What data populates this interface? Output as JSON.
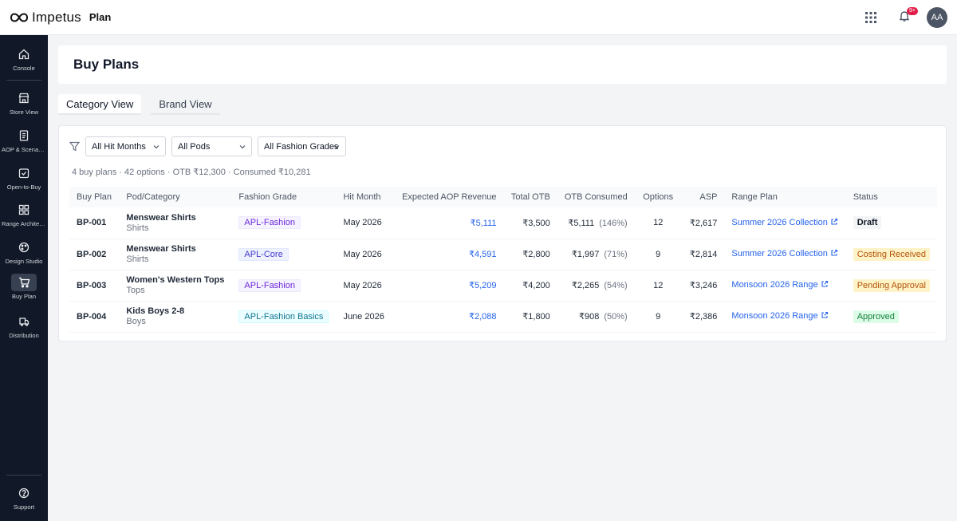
{
  "topbar": {
    "brand_name": "Impetus",
    "app_name": "Plan",
    "notification_badge": "9+",
    "avatar_initials": "AA"
  },
  "sidebar": {
    "items": [
      {
        "label": "Console",
        "icon": "home-icon"
      },
      {
        "label": "Store View",
        "icon": "store-icon"
      },
      {
        "label": "AOP & Scenarios",
        "icon": "document-icon"
      },
      {
        "label": "Open-to-Buy",
        "icon": "calendar-check-icon"
      },
      {
        "label": "Range Architecture",
        "icon": "grid-icon"
      },
      {
        "label": "Design Studio",
        "icon": "palette-icon"
      },
      {
        "label": "Buy Plan",
        "icon": "cart-icon"
      },
      {
        "label": "Distribution",
        "icon": "truck-icon"
      }
    ],
    "support_label": "Support"
  },
  "page": {
    "title": "Buy Plans"
  },
  "tabs": [
    {
      "label": "Category View",
      "active": true
    },
    {
      "label": "Brand View",
      "active": false
    }
  ],
  "filters": {
    "hit_months": "All Hit Months",
    "pods": "All Pods",
    "grades": "All Fashion Grades"
  },
  "summary": "4 buy plans · 42 options · OTB ₹12,300 · Consumed ₹10,281",
  "table": {
    "headers": {
      "buy_plan": "Buy Plan",
      "pod_category": "Pod/Category",
      "fashion_grade": "Fashion Grade",
      "hit_month": "Hit Month",
      "expected_aop_revenue": "Expected AOP Revenue",
      "total_otb": "Total OTB",
      "otb_consumed": "OTB Consumed",
      "options": "Options",
      "asp": "ASP",
      "range_plan": "Range Plan",
      "status": "Status"
    },
    "rows": [
      {
        "id": "BP-001",
        "pod": "Menswear Shirts",
        "category": "Shirts",
        "grade": "APL-Fashion",
        "hit_month": "May 2026",
        "revenue": "₹5,111",
        "otb": "₹3,500",
        "consumed": "₹5,111",
        "consumed_pct": "(146%)",
        "options": "12",
        "asp": "₹2,617",
        "range_plan": "Summer 2026 Collection",
        "status": "Draft"
      },
      {
        "id": "BP-002",
        "pod": "Menswear Shirts",
        "category": "Shirts",
        "grade": "APL-Core",
        "hit_month": "May 2026",
        "revenue": "₹4,591",
        "otb": "₹2,800",
        "consumed": "₹1,997",
        "consumed_pct": "(71%)",
        "options": "9",
        "asp": "₹2,814",
        "range_plan": "Summer 2026 Collection",
        "status": "Costing Received"
      },
      {
        "id": "BP-003",
        "pod": "Women's Western Tops",
        "category": "Tops",
        "grade": "APL-Fashion",
        "hit_month": "May 2026",
        "revenue": "₹5,209",
        "otb": "₹4,200",
        "consumed": "₹2,265",
        "consumed_pct": "(54%)",
        "options": "12",
        "asp": "₹3,246",
        "range_plan": "Monsoon 2026 Range",
        "status": "Pending Approval"
      },
      {
        "id": "BP-004",
        "pod": "Kids Boys 2-8",
        "category": "Boys",
        "grade": "APL-Fashion Basics",
        "hit_month": "June 2026",
        "revenue": "₹2,088",
        "otb": "₹1,800",
        "consumed": "₹908",
        "consumed_pct": "(50%)",
        "options": "9",
        "asp": "₹2,386",
        "range_plan": "Monsoon 2026 Range",
        "status": "Approved"
      }
    ]
  },
  "colors": {
    "sidebar_bg": "#111827",
    "link": "#2563eb",
    "status_draft": "#f3f4f6",
    "status_pending": "#fef3c7",
    "status_approved": "#dcfce7"
  }
}
